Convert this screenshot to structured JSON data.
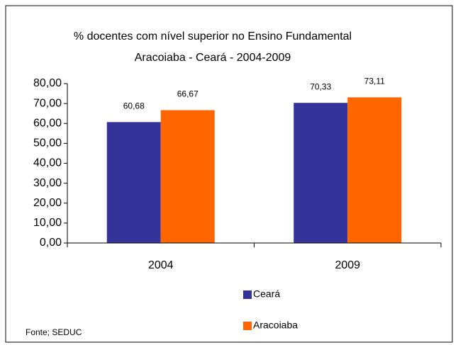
{
  "chart_data": {
    "type": "bar",
    "title": "% docentes com nível  superior no Ensino Fundamental",
    "subtitle": "Aracoiaba  -  Ceará - 2004-2009",
    "categories": [
      "2004",
      "2009"
    ],
    "series": [
      {
        "name": "Ceará",
        "color": "#333399",
        "values": [
          60.68,
          70.33
        ],
        "value_labels": [
          "60,68",
          "70,33"
        ]
      },
      {
        "name": "Aracoiaba",
        "color": "#ff6600",
        "values": [
          66.67,
          73.11
        ],
        "value_labels": [
          "66,67",
          "73,11"
        ]
      }
    ],
    "ylim": [
      0,
      80
    ],
    "yticks": [
      {
        "value": 0,
        "label": "0,00"
      },
      {
        "value": 10,
        "label": "10,00"
      },
      {
        "value": 20,
        "label": "20,00"
      },
      {
        "value": 30,
        "label": "30,00"
      },
      {
        "value": 40,
        "label": "40,00"
      },
      {
        "value": 50,
        "label": "50,00"
      },
      {
        "value": 60,
        "label": "60,00"
      },
      {
        "value": 70,
        "label": "70,00"
      },
      {
        "value": 80,
        "label": "80,00"
      }
    ],
    "legend": "bottom",
    "source": "Fonte; SEDUC"
  }
}
